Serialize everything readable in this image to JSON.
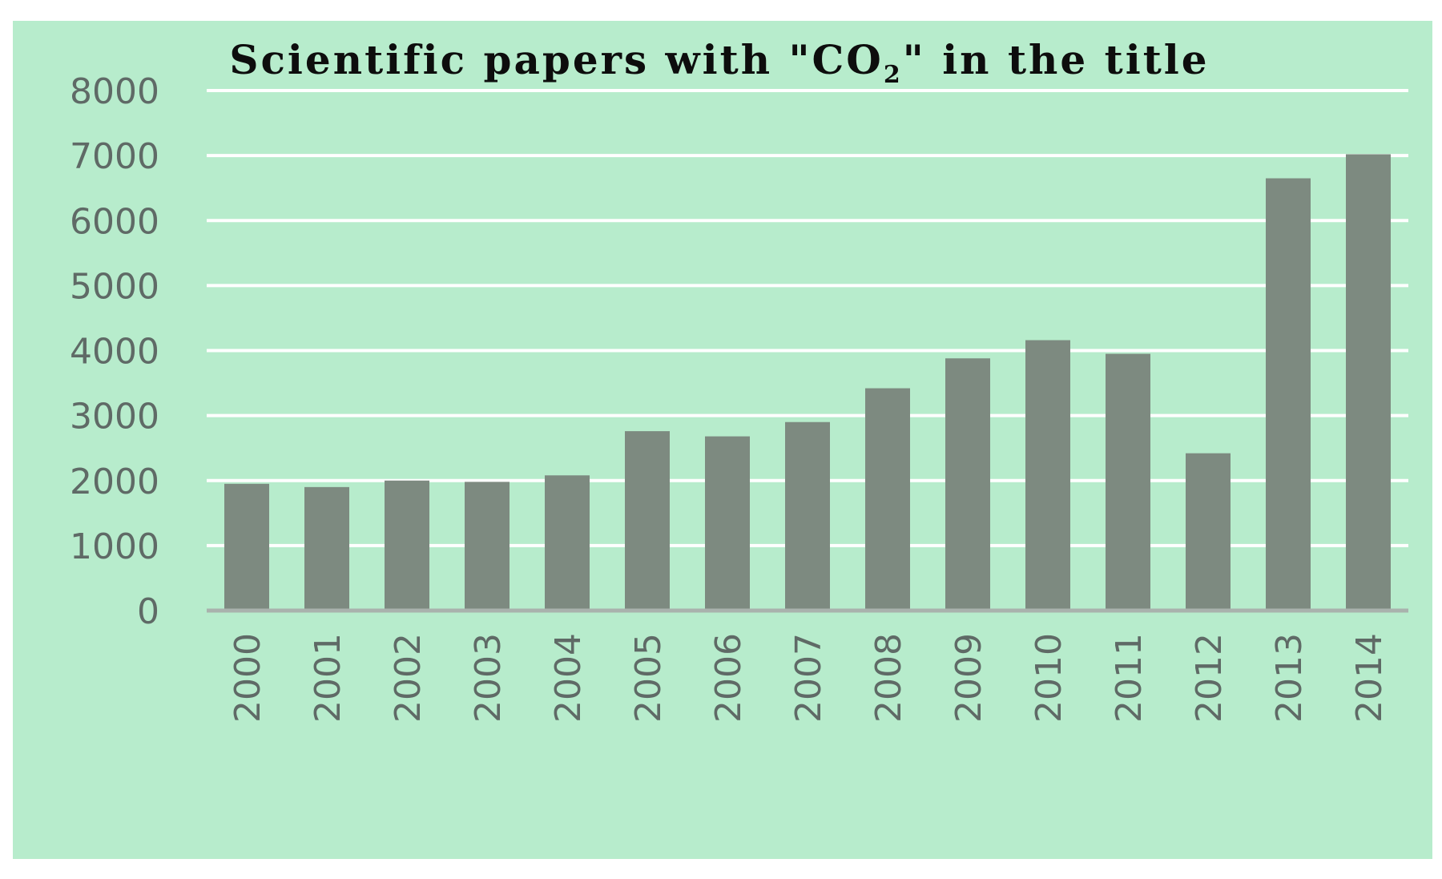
{
  "chart_data": {
    "type": "bar",
    "title": {
      "before": "Scientific papers with \"CO",
      "subscript": "2",
      "after": "\" in the title"
    },
    "xlabel": "",
    "ylabel": "",
    "categories": [
      "2000",
      "2001",
      "2002",
      "2003",
      "2004",
      "2005",
      "2006",
      "2007",
      "2008",
      "2009",
      "2010",
      "2011",
      "2012",
      "2013",
      "2014"
    ],
    "values": [
      1950,
      1900,
      2000,
      1980,
      2080,
      2760,
      2680,
      2900,
      3420,
      3880,
      4160,
      3950,
      2420,
      6650,
      7020
    ],
    "ylim": [
      0,
      8000
    ],
    "yticks": [
      "0",
      "1000",
      "2000",
      "3000",
      "4000",
      "5000",
      "6000",
      "7000",
      "8000"
    ],
    "grid": true,
    "legend": "none",
    "colors": {
      "background": "#b7eccc",
      "bar": "#7d8a80",
      "gridline": "#ffffff",
      "axis": "#a9b2ad"
    }
  }
}
